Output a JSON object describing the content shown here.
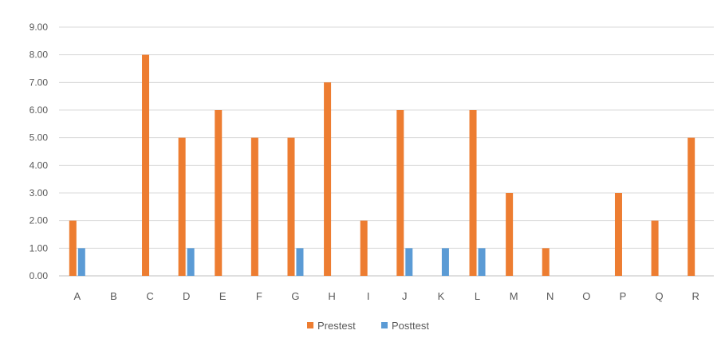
{
  "chart_data": {
    "type": "bar",
    "categories": [
      "A",
      "B",
      "C",
      "D",
      "E",
      "F",
      "G",
      "H",
      "I",
      "J",
      "K",
      "L",
      "M",
      "N",
      "O",
      "P",
      "Q",
      "R"
    ],
    "series": [
      {
        "name": "Prestest",
        "color": "#ED7D31",
        "values": [
          2,
          0,
          8,
          5,
          6,
          5,
          5,
          7,
          2,
          6,
          0,
          6,
          3,
          1,
          0,
          3,
          2,
          5
        ]
      },
      {
        "name": "Posttest",
        "color": "#5B9BD5",
        "values": [
          1,
          0,
          0,
          1,
          0,
          0,
          1,
          0,
          0,
          1,
          1,
          1,
          0,
          0,
          0,
          0,
          0,
          0
        ]
      }
    ],
    "y_ticks": [
      "0.00",
      "1.00",
      "2.00",
      "3.00",
      "4.00",
      "5.00",
      "6.00",
      "7.00",
      "8.00",
      "9.00"
    ],
    "ylim": [
      0,
      9
    ],
    "grid": true,
    "legend_position": "bottom",
    "title": "",
    "xlabel": "",
    "ylabel": "",
    "colors": {
      "gridline": "#D9D9D9",
      "axis_text": "#595959",
      "baseline": "#BFBFBF"
    }
  }
}
